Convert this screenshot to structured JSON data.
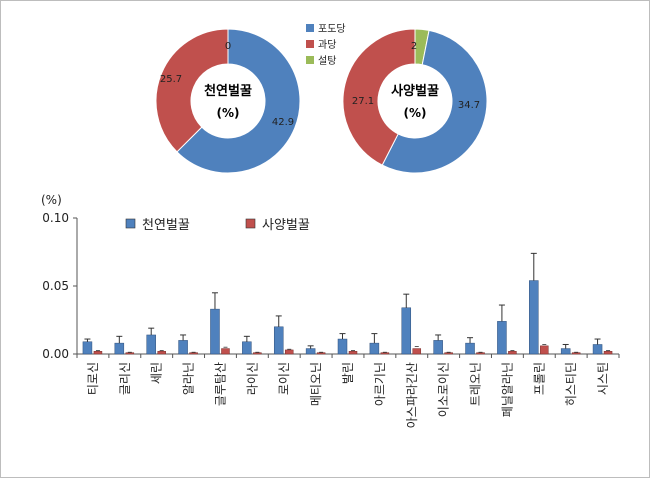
{
  "chart_data": [
    {
      "type": "pie",
      "title": "천연벌꿀",
      "unit": "(%)",
      "slices": [
        {
          "name": "포도당",
          "value": 42.9,
          "label": "42.9",
          "color": "#4f81bd"
        },
        {
          "name": "과당",
          "value": 25.7,
          "label": "25.7",
          "color": "#c0504d"
        },
        {
          "name": "설탕",
          "value": 0,
          "label": "0",
          "color": "#9bbb59"
        }
      ]
    },
    {
      "type": "pie",
      "title": "사양벌꿀",
      "unit": "(%)",
      "slices": [
        {
          "name": "포도당",
          "value": 34.7,
          "label": "34.7",
          "color": "#4f81bd"
        },
        {
          "name": "과당",
          "value": 27.1,
          "label": "27.1",
          "color": "#c0504d"
        },
        {
          "name": "설탕",
          "value": 2,
          "label": "2",
          "color": "#9bbb59"
        }
      ]
    },
    {
      "type": "bar",
      "ylabel": "(%)",
      "ylim": [
        0,
        0.1
      ],
      "yticks": [
        "0.00",
        "0.05",
        "0.10"
      ],
      "grid": false,
      "legend": "top-left",
      "categories": [
        "티로신",
        "글리신",
        "세린",
        "알라닌",
        "글루탐산",
        "라이신",
        "로이신",
        "메티오닌",
        "발린",
        "아르기닌",
        "아스파라긴산",
        "이소로이신",
        "트레오닌",
        "페닐알라닌",
        "프롤린",
        "히스티딘",
        "시스틴"
      ],
      "series": [
        {
          "name": "천연벌꿀",
          "color": "#4f81bd",
          "values": [
            0.009,
            0.008,
            0.014,
            0.01,
            0.033,
            0.009,
            0.02,
            0.004,
            0.011,
            0.008,
            0.034,
            0.01,
            0.008,
            0.024,
            0.054,
            0.004,
            0.007
          ],
          "errors": [
            0.002,
            0.005,
            0.005,
            0.004,
            0.012,
            0.004,
            0.008,
            0.002,
            0.004,
            0.007,
            0.01,
            0.004,
            0.004,
            0.012,
            0.02,
            0.003,
            0.004
          ]
        },
        {
          "name": "사양벌꿀",
          "color": "#c0504d",
          "values": [
            0.002,
            0.001,
            0.002,
            0.001,
            0.004,
            0.001,
            0.003,
            0.001,
            0.002,
            0.001,
            0.004,
            0.001,
            0.001,
            0.002,
            0.006,
            0.001,
            0.002
          ],
          "errors": [
            0.0005,
            0.0003,
            0.0005,
            0.0003,
            0.001,
            0.0003,
            0.0005,
            0.0003,
            0.0005,
            0.0003,
            0.0015,
            0.0003,
            0.0003,
            0.0005,
            0.001,
            0.0003,
            0.0005
          ]
        }
      ]
    }
  ]
}
